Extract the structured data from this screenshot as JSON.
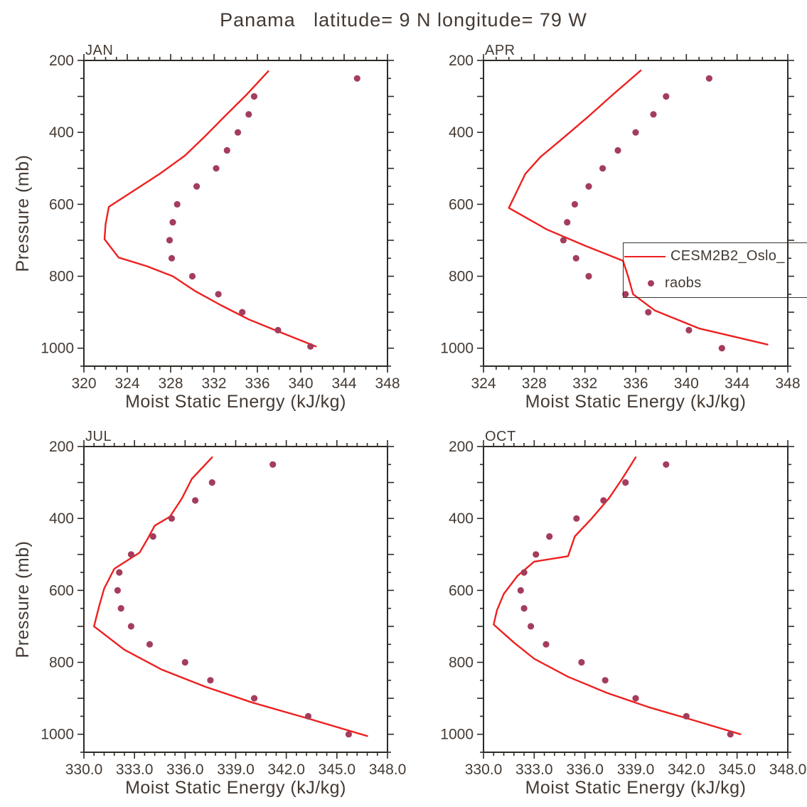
{
  "title": "Panama   latitude= 9 N longitude= 79 W",
  "legend": {
    "line_label": "CESM2B2_Oslo_",
    "marker_label": "raobs"
  },
  "colors": {
    "model_line": "#ee2020",
    "raobs_dot": "#a43d5c",
    "text": "#443a33",
    "axis": "#2e2a26"
  },
  "chart_data": [
    {
      "type": "line",
      "name": "JAN",
      "xlabel": "Moist Static Energy (kJ/kg)",
      "ylabel": "Pressure (mb)",
      "xlim": [
        320,
        348
      ],
      "ylim": [
        200,
        1050
      ],
      "xtick_values": [
        320,
        324,
        328,
        332,
        336,
        340,
        344,
        348
      ],
      "xtick_labels": [
        "320",
        "324",
        "328",
        "332",
        "336",
        "340",
        "344",
        "348"
      ],
      "xminor_step": 1,
      "ytick_values": [
        200,
        400,
        600,
        800,
        1000
      ],
      "ytick_labels": [
        "200",
        "400",
        "600",
        "800",
        "1000"
      ],
      "ymajor_step": 100,
      "yminor_step": 50,
      "grid": false,
      "model_line": [
        [
          337.0,
          230
        ],
        [
          335.0,
          295
        ],
        [
          333.0,
          355
        ],
        [
          331.2,
          410
        ],
        [
          329.3,
          465
        ],
        [
          327.0,
          515
        ],
        [
          322.3,
          607
        ],
        [
          322.0,
          655
        ],
        [
          321.9,
          697
        ],
        [
          323.2,
          748
        ],
        [
          325.8,
          772
        ],
        [
          328.2,
          800
        ],
        [
          330.2,
          840
        ],
        [
          332.6,
          880
        ],
        [
          335.2,
          920
        ],
        [
          337.8,
          952
        ],
        [
          341.4,
          995
        ]
      ],
      "raobs": [
        [
          345.2,
          250
        ],
        [
          335.7,
          300
        ],
        [
          335.2,
          350
        ],
        [
          334.2,
          400
        ],
        [
          333.2,
          450
        ],
        [
          332.2,
          500
        ],
        [
          330.4,
          550
        ],
        [
          328.6,
          600
        ],
        [
          328.2,
          650
        ],
        [
          327.9,
          700
        ],
        [
          328.1,
          750
        ],
        [
          330.0,
          800
        ],
        [
          332.4,
          850
        ],
        [
          334.6,
          900
        ],
        [
          337.9,
          950
        ],
        [
          340.9,
          995
        ]
      ]
    },
    {
      "type": "line",
      "name": "APR",
      "xlabel": "Moist Static Energy (kJ/kg)",
      "ylabel": "",
      "xlim": [
        324,
        348
      ],
      "ylim": [
        200,
        1050
      ],
      "xtick_values": [
        324,
        328,
        332,
        336,
        340,
        344,
        348
      ],
      "xtick_labels": [
        "324",
        "328",
        "332",
        "336",
        "340",
        "344",
        "348"
      ],
      "xminor_step": 1,
      "ytick_values": [
        200,
        400,
        600,
        800,
        1000
      ],
      "ytick_labels": [
        "200",
        "400",
        "600",
        "800",
        "1000"
      ],
      "ymajor_step": 100,
      "yminor_step": 50,
      "grid": false,
      "model_line": [
        [
          336.4,
          228
        ],
        [
          334.2,
          295
        ],
        [
          332.3,
          355
        ],
        [
          330.3,
          415
        ],
        [
          328.5,
          468
        ],
        [
          327.3,
          515
        ],
        [
          326.0,
          610
        ],
        [
          329.0,
          670
        ],
        [
          332.0,
          715
        ],
        [
          335.0,
          757
        ],
        [
          335.4,
          800
        ],
        [
          335.8,
          850
        ],
        [
          337.5,
          895
        ],
        [
          341.0,
          945
        ],
        [
          346.4,
          990
        ]
      ],
      "raobs": [
        [
          341.8,
          250
        ],
        [
          338.4,
          300
        ],
        [
          337.4,
          350
        ],
        [
          336.0,
          400
        ],
        [
          334.6,
          450
        ],
        [
          333.4,
          500
        ],
        [
          332.3,
          550
        ],
        [
          331.2,
          600
        ],
        [
          330.6,
          650
        ],
        [
          330.3,
          700
        ],
        [
          331.3,
          750
        ],
        [
          332.3,
          800
        ],
        [
          335.2,
          850
        ],
        [
          337.0,
          900
        ],
        [
          340.2,
          950
        ],
        [
          342.8,
          1000
        ]
      ]
    },
    {
      "type": "line",
      "name": "JUL",
      "xlabel": "Moist Static Energy (kJ/kg)",
      "ylabel": "Pressure (mb)",
      "xlim": [
        330,
        348
      ],
      "ylim": [
        200,
        1050
      ],
      "xtick_values": [
        330,
        333,
        336,
        339,
        342,
        345,
        348
      ],
      "xtick_labels": [
        "330.0",
        "333.0",
        "336.0",
        "339.0",
        "342.0",
        "345.0",
        "348.0"
      ],
      "xminor_step": 0.6,
      "ytick_values": [
        200,
        400,
        600,
        800,
        1000
      ],
      "ytick_labels": [
        "200",
        "400",
        "600",
        "800",
        "1000"
      ],
      "ymajor_step": 100,
      "yminor_step": 50,
      "grid": false,
      "model_line": [
        [
          337.6,
          230
        ],
        [
          336.4,
          290
        ],
        [
          335.8,
          345
        ],
        [
          335.1,
          395
        ],
        [
          334.2,
          420
        ],
        [
          333.8,
          455
        ],
        [
          333.3,
          495
        ],
        [
          331.8,
          540
        ],
        [
          331.2,
          595
        ],
        [
          330.9,
          645
        ],
        [
          330.6,
          700
        ],
        [
          332.4,
          765
        ],
        [
          334.6,
          820
        ],
        [
          337.2,
          868
        ],
        [
          340.0,
          912
        ],
        [
          343.2,
          955
        ],
        [
          346.8,
          1005
        ]
      ],
      "raobs": [
        [
          341.2,
          250
        ],
        [
          337.6,
          300
        ],
        [
          336.6,
          350
        ],
        [
          335.2,
          400
        ],
        [
          334.1,
          450
        ],
        [
          332.8,
          500
        ],
        [
          332.1,
          550
        ],
        [
          332.0,
          600
        ],
        [
          332.2,
          650
        ],
        [
          332.8,
          700
        ],
        [
          333.9,
          750
        ],
        [
          336.0,
          800
        ],
        [
          337.5,
          850
        ],
        [
          340.1,
          900
        ],
        [
          343.3,
          950
        ],
        [
          345.7,
          1000
        ]
      ]
    },
    {
      "type": "line",
      "name": "OCT",
      "xlabel": "Moist Static Energy (kJ/kg)",
      "ylabel": "",
      "xlim": [
        330,
        348
      ],
      "ylim": [
        200,
        1050
      ],
      "xtick_values": [
        330,
        333,
        336,
        339,
        342,
        345,
        348
      ],
      "xtick_labels": [
        "330.0",
        "333.0",
        "336.0",
        "339.0",
        "342.0",
        "345.0",
        "348.0"
      ],
      "xminor_step": 0.6,
      "ytick_values": [
        200,
        400,
        600,
        800,
        1000
      ],
      "ytick_labels": [
        "200",
        "400",
        "600",
        "800",
        "1000"
      ],
      "ymajor_step": 100,
      "yminor_step": 50,
      "grid": false,
      "model_line": [
        [
          339.0,
          230
        ],
        [
          338.2,
          290
        ],
        [
          337.4,
          345
        ],
        [
          336.4,
          400
        ],
        [
          335.4,
          450
        ],
        [
          335.0,
          505
        ],
        [
          333.0,
          520
        ],
        [
          332.0,
          560
        ],
        [
          331.2,
          610
        ],
        [
          330.8,
          655
        ],
        [
          330.6,
          695
        ],
        [
          331.8,
          745
        ],
        [
          333.0,
          790
        ],
        [
          335.0,
          840
        ],
        [
          337.3,
          885
        ],
        [
          339.8,
          925
        ],
        [
          342.5,
          962
        ],
        [
          345.2,
          1000
        ]
      ],
      "raobs": [
        [
          340.8,
          250
        ],
        [
          338.4,
          300
        ],
        [
          337.1,
          350
        ],
        [
          335.5,
          400
        ],
        [
          333.9,
          450
        ],
        [
          333.1,
          500
        ],
        [
          332.4,
          550
        ],
        [
          332.2,
          600
        ],
        [
          332.4,
          650
        ],
        [
          332.8,
          700
        ],
        [
          333.7,
          750
        ],
        [
          335.8,
          800
        ],
        [
          337.2,
          850
        ],
        [
          339.0,
          900
        ],
        [
          342.0,
          950
        ],
        [
          344.6,
          1000
        ]
      ]
    }
  ]
}
